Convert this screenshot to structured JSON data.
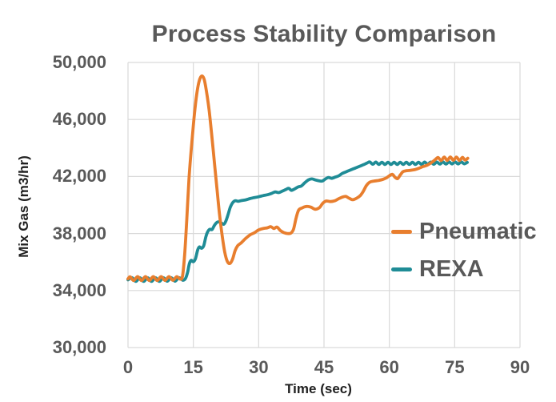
{
  "title": "Process Stability Comparison",
  "colors": {
    "background": "#FFFFFF",
    "grid": "#D9D9D9",
    "tick_text": "#595959",
    "axis_title_text": "#1F1F1F",
    "title_text": "#595959",
    "pneumatic": "#E87E2E",
    "rexa": "#1F8C96"
  },
  "chart_data": {
    "type": "line",
    "title": "Process Stability Comparison",
    "xlabel": "Time (sec)",
    "ylabel": "Mix Gas (m3/hr)",
    "xlim": [
      0,
      90
    ],
    "ylim": [
      30000,
      50000
    ],
    "x_ticks": [
      0,
      15,
      30,
      45,
      60,
      75,
      90
    ],
    "y_ticks": [
      30000,
      34000,
      38000,
      42000,
      46000,
      50000
    ],
    "y_tick_labels": [
      "30,000",
      "34,000",
      "38,000",
      "42,000",
      "46,000",
      "50,000"
    ],
    "grid": true,
    "legend_position": "inside-right",
    "series": [
      {
        "name": "REXA",
        "color": "#1F8C96",
        "points": [
          [
            0,
            34750
          ],
          [
            0.9,
            34900
          ],
          [
            1.8,
            34640
          ],
          [
            2.7,
            34900
          ],
          [
            3.6,
            34640
          ],
          [
            4.5,
            34900
          ],
          [
            5.4,
            34640
          ],
          [
            6.3,
            34900
          ],
          [
            7.2,
            34640
          ],
          [
            8.1,
            34900
          ],
          [
            9.0,
            34650
          ],
          [
            9.9,
            34900
          ],
          [
            10.8,
            34660
          ],
          [
            11.7,
            34900
          ],
          [
            12.6,
            34720
          ],
          [
            13.2,
            34850
          ],
          [
            13.7,
            35300
          ],
          [
            14.1,
            35900
          ],
          [
            14.5,
            36120
          ],
          [
            15.0,
            36020
          ],
          [
            15.5,
            36250
          ],
          [
            16.0,
            36850
          ],
          [
            16.4,
            37060
          ],
          [
            16.9,
            36960
          ],
          [
            17.4,
            37150
          ],
          [
            17.9,
            37800
          ],
          [
            18.3,
            38120
          ],
          [
            18.8,
            38300
          ],
          [
            19.3,
            38280
          ],
          [
            19.8,
            38550
          ],
          [
            20.3,
            38750
          ],
          [
            20.8,
            38820
          ],
          [
            21.4,
            38740
          ],
          [
            22.0,
            38650
          ],
          [
            22.5,
            38900
          ],
          [
            23.0,
            39350
          ],
          [
            23.5,
            39850
          ],
          [
            24.0,
            40150
          ],
          [
            24.6,
            40300
          ],
          [
            25.3,
            40260
          ],
          [
            26.0,
            40310
          ],
          [
            27.0,
            40360
          ],
          [
            28.0,
            40450
          ],
          [
            29.0,
            40520
          ],
          [
            30.0,
            40580
          ],
          [
            31.0,
            40660
          ],
          [
            32.0,
            40720
          ],
          [
            33.0,
            40820
          ],
          [
            33.8,
            40920
          ],
          [
            34.6,
            40870
          ],
          [
            35.4,
            40970
          ],
          [
            36.2,
            41080
          ],
          [
            36.9,
            41170
          ],
          [
            37.5,
            41030
          ],
          [
            38.2,
            41120
          ],
          [
            39.0,
            41260
          ],
          [
            39.8,
            41330
          ],
          [
            40.6,
            41560
          ],
          [
            41.4,
            41760
          ],
          [
            42.2,
            41830
          ],
          [
            43.0,
            41760
          ],
          [
            43.8,
            41700
          ],
          [
            44.6,
            41680
          ],
          [
            45.3,
            41820
          ],
          [
            46.0,
            41930
          ],
          [
            46.8,
            41870
          ],
          [
            47.6,
            41960
          ],
          [
            48.4,
            42050
          ],
          [
            49.2,
            42220
          ],
          [
            50.0,
            42320
          ],
          [
            50.8,
            42420
          ],
          [
            51.6,
            42520
          ],
          [
            52.4,
            42620
          ],
          [
            53.2,
            42720
          ],
          [
            54.0,
            42820
          ],
          [
            54.8,
            42930
          ],
          [
            55.5,
            43020
          ],
          [
            56.2,
            42860
          ],
          [
            56.9,
            43010
          ],
          [
            57.6,
            42850
          ],
          [
            58.3,
            43000
          ],
          [
            59.0,
            42840
          ],
          [
            59.7,
            43000
          ],
          [
            60.4,
            42840
          ],
          [
            61.1,
            43000
          ],
          [
            61.8,
            42840
          ],
          [
            62.5,
            43000
          ],
          [
            63.2,
            42840
          ],
          [
            63.9,
            43000
          ],
          [
            64.6,
            42840
          ],
          [
            65.3,
            43000
          ],
          [
            66.0,
            42840
          ],
          [
            66.7,
            43000
          ],
          [
            67.4,
            42850
          ],
          [
            68.1,
            43010
          ],
          [
            68.8,
            42860
          ],
          [
            69.5,
            43010
          ],
          [
            70.2,
            42860
          ],
          [
            70.9,
            43010
          ],
          [
            71.6,
            42870
          ],
          [
            72.3,
            43020
          ],
          [
            73.0,
            42870
          ],
          [
            73.7,
            43020
          ],
          [
            74.4,
            42880
          ],
          [
            75.1,
            43030
          ],
          [
            75.8,
            42880
          ],
          [
            76.5,
            43020
          ],
          [
            77.2,
            42890
          ],
          [
            77.9,
            42990
          ]
        ]
      },
      {
        "name": "Pneumatic",
        "color": "#E87E2E",
        "points": [
          [
            0,
            34820
          ],
          [
            0.5,
            34960
          ],
          [
            1.3,
            34700
          ],
          [
            2.2,
            34980
          ],
          [
            3.1,
            34700
          ],
          [
            4.0,
            34980
          ],
          [
            4.9,
            34700
          ],
          [
            5.8,
            34980
          ],
          [
            6.7,
            34700
          ],
          [
            7.6,
            34980
          ],
          [
            8.5,
            34710
          ],
          [
            9.4,
            34980
          ],
          [
            10.3,
            34720
          ],
          [
            11.2,
            34970
          ],
          [
            12.0,
            34800
          ],
          [
            12.5,
            35000
          ],
          [
            13.0,
            36500
          ],
          [
            13.5,
            39000
          ],
          [
            14.0,
            41800
          ],
          [
            14.5,
            43800
          ],
          [
            15.0,
            45600
          ],
          [
            15.5,
            47100
          ],
          [
            16.0,
            48200
          ],
          [
            16.5,
            48850
          ],
          [
            17.0,
            49050
          ],
          [
            17.5,
            48800
          ],
          [
            18.0,
            48000
          ],
          [
            18.6,
            46700
          ],
          [
            19.2,
            45000
          ],
          [
            19.8,
            43100
          ],
          [
            20.4,
            41200
          ],
          [
            21.0,
            39400
          ],
          [
            21.6,
            37900
          ],
          [
            22.2,
            36700
          ],
          [
            22.8,
            36050
          ],
          [
            23.4,
            35900
          ],
          [
            24.0,
            36200
          ],
          [
            24.6,
            36800
          ],
          [
            25.2,
            37150
          ],
          [
            26.0,
            37350
          ],
          [
            27.0,
            37650
          ],
          [
            28.0,
            37900
          ],
          [
            29.0,
            38050
          ],
          [
            30.0,
            38250
          ],
          [
            31.0,
            38350
          ],
          [
            32.0,
            38400
          ],
          [
            32.8,
            38480
          ],
          [
            33.5,
            38350
          ],
          [
            34.2,
            38450
          ],
          [
            35.0,
            38200
          ],
          [
            35.8,
            38060
          ],
          [
            36.6,
            38000
          ],
          [
            37.4,
            38030
          ],
          [
            38.0,
            38300
          ],
          [
            38.6,
            39100
          ],
          [
            39.2,
            39650
          ],
          [
            40.0,
            39800
          ],
          [
            41.0,
            39900
          ],
          [
            42.0,
            39850
          ],
          [
            43.0,
            39700
          ],
          [
            44.0,
            39830
          ],
          [
            44.7,
            40120
          ],
          [
            45.5,
            40280
          ],
          [
            46.5,
            40240
          ],
          [
            47.5,
            40300
          ],
          [
            48.3,
            40430
          ],
          [
            49.2,
            40550
          ],
          [
            50.0,
            40600
          ],
          [
            50.8,
            40470
          ],
          [
            51.6,
            40370
          ],
          [
            52.5,
            40480
          ],
          [
            53.3,
            40650
          ],
          [
            54.0,
            40950
          ],
          [
            54.7,
            41350
          ],
          [
            55.5,
            41600
          ],
          [
            56.5,
            41680
          ],
          [
            57.5,
            41720
          ],
          [
            58.5,
            41800
          ],
          [
            59.3,
            41900
          ],
          [
            60.0,
            42050
          ],
          [
            60.7,
            42150
          ],
          [
            61.3,
            41950
          ],
          [
            61.9,
            41850
          ],
          [
            62.5,
            42100
          ],
          [
            63.1,
            42330
          ],
          [
            63.8,
            42400
          ],
          [
            64.8,
            42430
          ],
          [
            65.8,
            42480
          ],
          [
            66.8,
            42580
          ],
          [
            67.8,
            42700
          ],
          [
            68.6,
            42780
          ],
          [
            69.3,
            42900
          ],
          [
            70.0,
            43050
          ],
          [
            70.6,
            43200
          ],
          [
            71.2,
            43330
          ],
          [
            71.9,
            43120
          ],
          [
            72.6,
            43360
          ],
          [
            73.3,
            43130
          ],
          [
            74.0,
            43370
          ],
          [
            74.7,
            43140
          ],
          [
            75.4,
            43360
          ],
          [
            76.1,
            43130
          ],
          [
            76.8,
            43340
          ],
          [
            77.4,
            43150
          ],
          [
            78.0,
            43280
          ]
        ]
      }
    ]
  }
}
